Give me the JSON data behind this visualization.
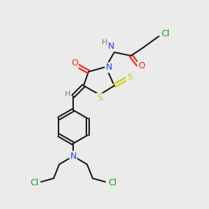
{
  "bg_color": "#ebebeb",
  "bond_color": "#1a1a1a",
  "colors": {
    "N": "#1e3fff",
    "O": "#ff2200",
    "S": "#cccc00",
    "Cl": "#00aa00",
    "H": "#777777",
    "C": "#1a1a1a"
  },
  "figsize": [
    3.0,
    3.0
  ],
  "dpi": 100,
  "lw": 1.5,
  "sep": 2.2
}
